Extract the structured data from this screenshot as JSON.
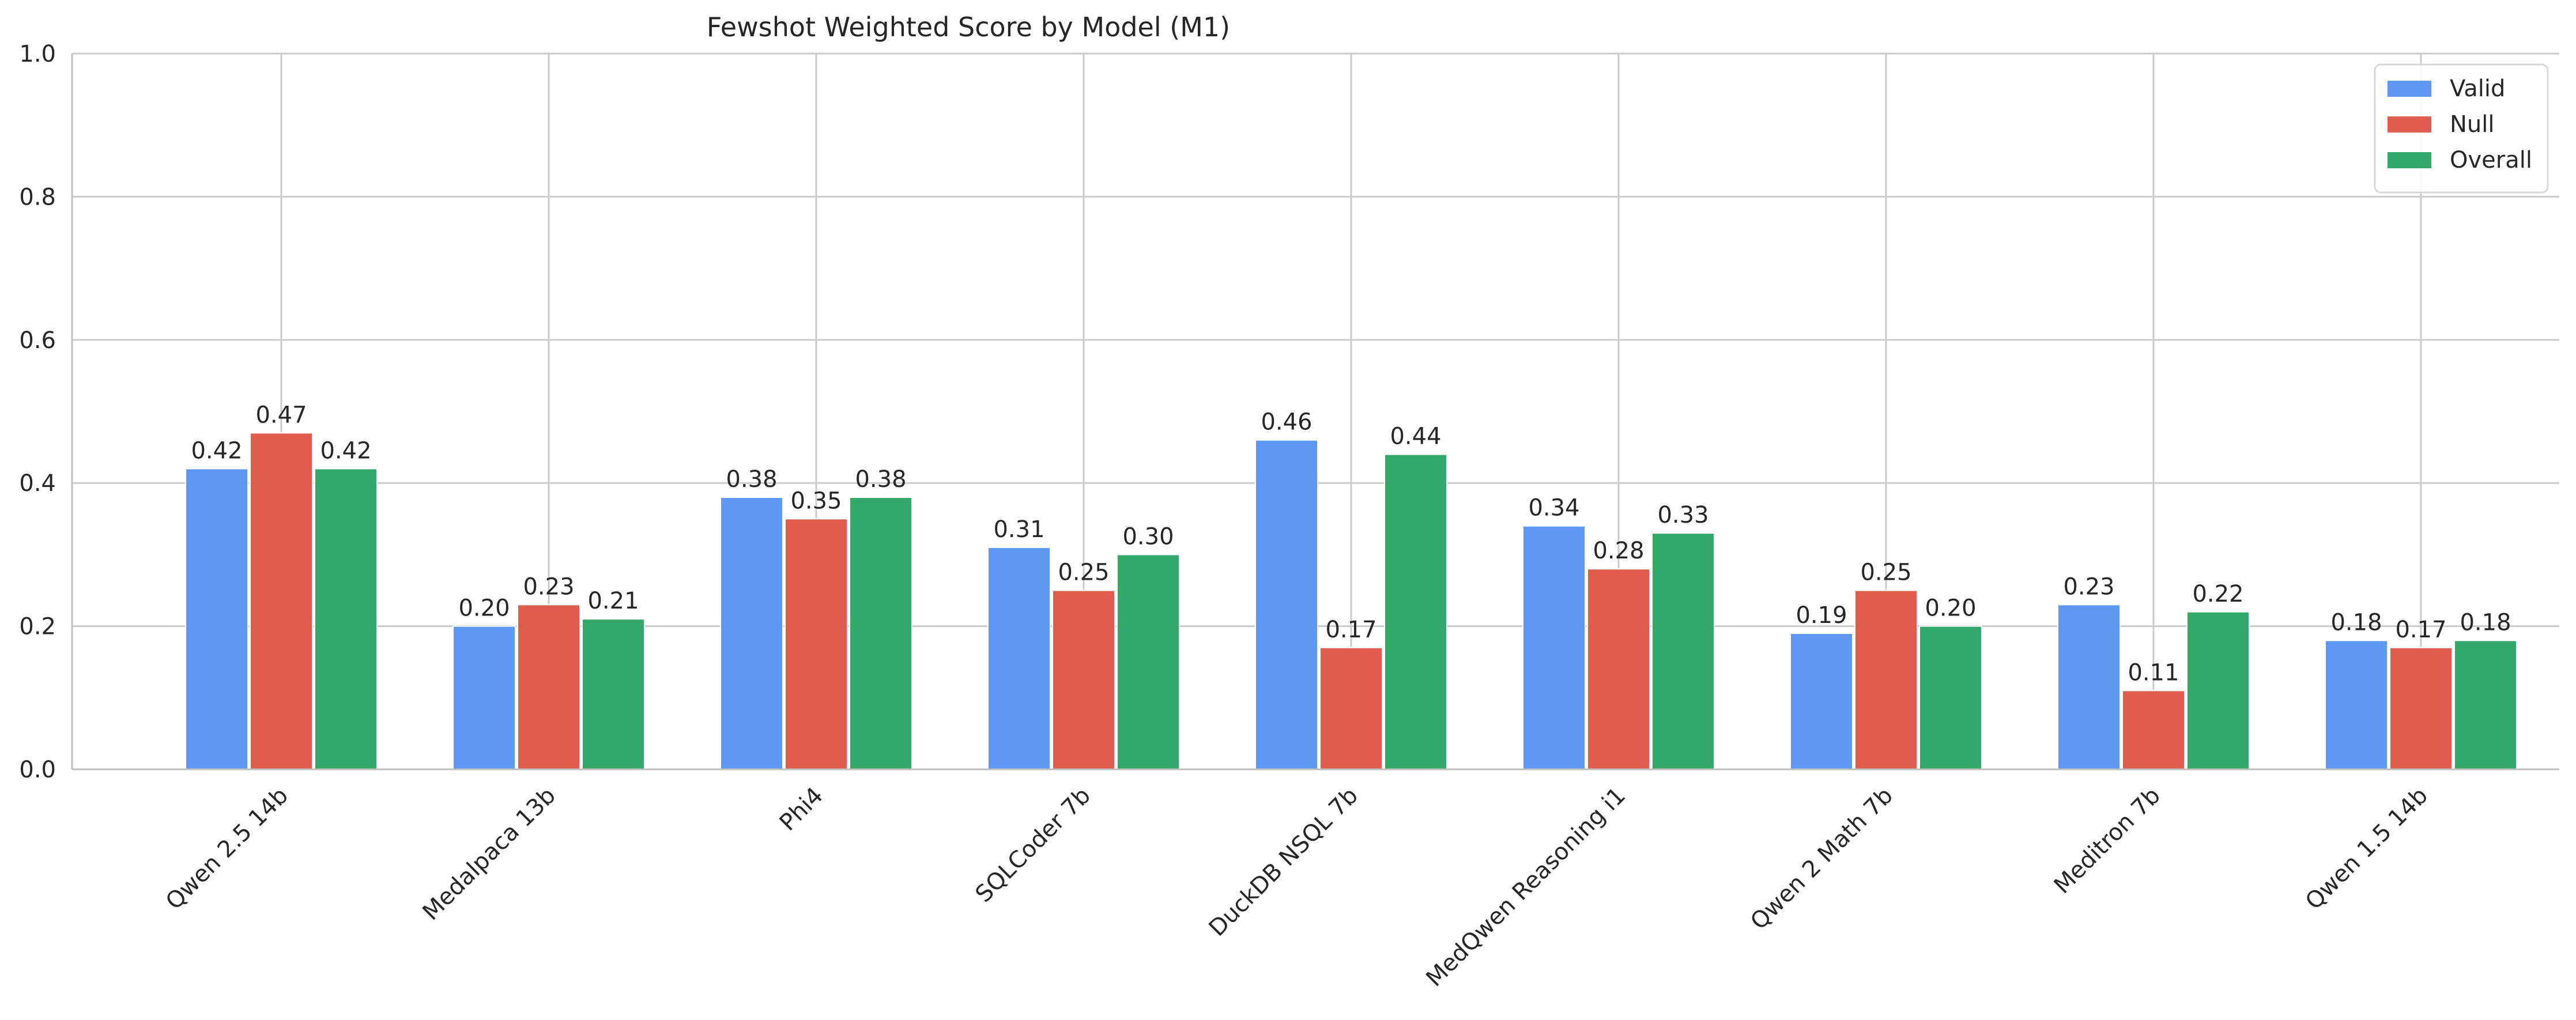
{
  "chart_data": {
    "type": "bar",
    "title": "Fewshot Weighted Score by Model (M1)",
    "xlabel": "",
    "ylabel": "",
    "ylim": [
      0,
      1.0
    ],
    "yticks": [
      "0.0",
      "0.2",
      "0.4",
      "0.6",
      "0.8",
      "1.0"
    ],
    "grid": true,
    "legend_position": "top-right",
    "categories": [
      "Qwen 2.5 14b",
      "Medalpaca 13b",
      "Phi4",
      "SQLCoder 7b",
      "DuckDB NSQL 7b",
      "MedQwen Reasoning i1",
      "Qwen 2 Math 7b",
      "Meditron 7b",
      "Qwen 1.5 14b"
    ],
    "series": [
      {
        "name": "Valid",
        "color": "#5f97f4",
        "values": [
          0.42,
          0.2,
          0.38,
          0.31,
          0.46,
          0.34,
          0.19,
          0.23,
          0.18
        ],
        "labels": [
          "0.42",
          "0.20",
          "0.38",
          "0.31",
          "0.46",
          "0.34",
          "0.19",
          "0.23",
          "0.18"
        ]
      },
      {
        "name": "Null",
        "color": "#df5c4e",
        "values": [
          0.47,
          0.23,
          0.35,
          0.25,
          0.17,
          0.28,
          0.25,
          0.11,
          0.17
        ],
        "labels": [
          "0.47",
          "0.23",
          "0.35",
          "0.25",
          "0.17",
          "0.28",
          "0.25",
          "0.11",
          "0.17"
        ]
      },
      {
        "name": "Overall",
        "color": "#34a86a",
        "values": [
          0.42,
          0.21,
          0.38,
          0.3,
          0.44,
          0.33,
          0.2,
          0.22,
          0.18
        ],
        "labels": [
          "0.42",
          "0.21",
          "0.38",
          "0.30",
          "0.44",
          "0.33",
          "0.20",
          "0.22",
          "0.18"
        ]
      }
    ]
  }
}
